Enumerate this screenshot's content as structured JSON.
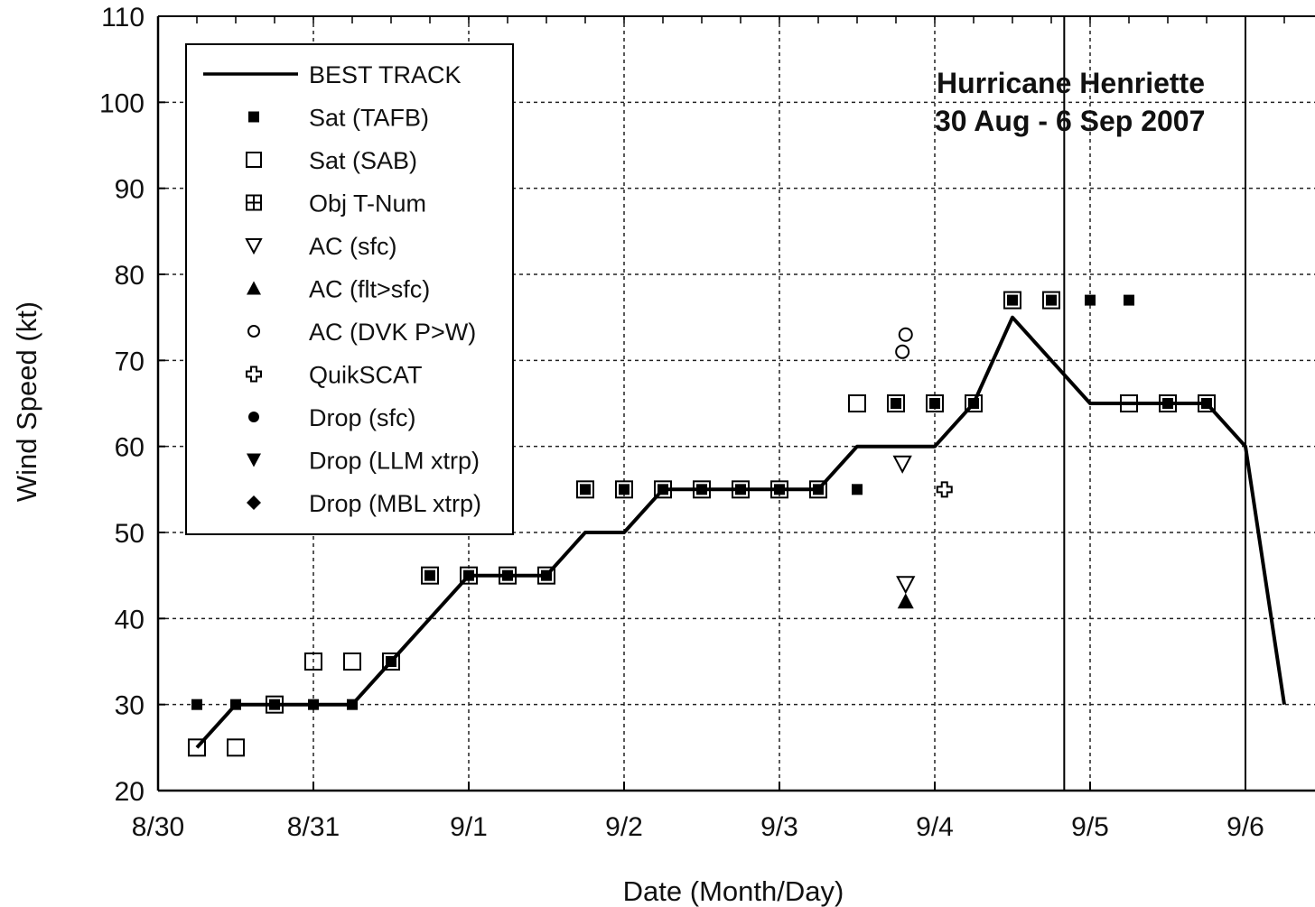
{
  "chart_data": {
    "type": "scatter",
    "title": "Hurricane Henriette",
    "subtitle": "30 Aug - 6 Sep 2007",
    "xlabel": "Date (Month/Day)",
    "ylabel": "Wind Speed (kt)",
    "xlim": [
      "2007-08-30",
      "2007-09-06T06:00"
    ],
    "ylim": [
      20,
      110
    ],
    "x_ticks": [
      "8/30",
      "8/31",
      "9/1",
      "9/2",
      "9/3",
      "9/4",
      "9/5",
      "9/6"
    ],
    "y_ticks": [
      20,
      30,
      40,
      50,
      60,
      70,
      80,
      90,
      100,
      110
    ],
    "grid": true,
    "legend_position": "top-left",
    "vertical_lines": [
      "2007-09-04T20:00",
      "2007-09-06T00:00"
    ],
    "series": [
      {
        "name": "BEST TRACK",
        "marker": "line",
        "points": [
          [
            "2007-08-30T06:00",
            25
          ],
          [
            "2007-08-30T12:00",
            30
          ],
          [
            "2007-08-30T18:00",
            30
          ],
          [
            "2007-08-31T00:00",
            30
          ],
          [
            "2007-08-31T06:00",
            30
          ],
          [
            "2007-08-31T12:00",
            35
          ],
          [
            "2007-08-31T18:00",
            40
          ],
          [
            "2007-09-01T00:00",
            45
          ],
          [
            "2007-09-01T06:00",
            45
          ],
          [
            "2007-09-01T12:00",
            45
          ],
          [
            "2007-09-01T18:00",
            50
          ],
          [
            "2007-09-02T00:00",
            50
          ],
          [
            "2007-09-02T06:00",
            55
          ],
          [
            "2007-09-02T12:00",
            55
          ],
          [
            "2007-09-02T18:00",
            55
          ],
          [
            "2007-09-03T00:00",
            55
          ],
          [
            "2007-09-03T06:00",
            55
          ],
          [
            "2007-09-03T12:00",
            60
          ],
          [
            "2007-09-03T18:00",
            60
          ],
          [
            "2007-09-04T00:00",
            60
          ],
          [
            "2007-09-04T06:00",
            65
          ],
          [
            "2007-09-04T12:00",
            75
          ],
          [
            "2007-09-04T18:00",
            70
          ],
          [
            "2007-09-05T00:00",
            65
          ],
          [
            "2007-09-05T06:00",
            65
          ],
          [
            "2007-09-05T12:00",
            65
          ],
          [
            "2007-09-05T18:00",
            65
          ],
          [
            "2007-09-06T00:00",
            60
          ],
          [
            "2007-09-06T06:00",
            30
          ]
        ]
      },
      {
        "name": "Sat (TAFB)",
        "marker": "small-square-filled",
        "points": [
          [
            "2007-08-30T06:00",
            30
          ],
          [
            "2007-08-30T12:00",
            30
          ],
          [
            "2007-08-30T18:00",
            30
          ],
          [
            "2007-08-31T00:00",
            30
          ],
          [
            "2007-08-31T06:00",
            30
          ],
          [
            "2007-08-31T12:00",
            35
          ],
          [
            "2007-08-31T18:00",
            45
          ],
          [
            "2007-09-01T00:00",
            45
          ],
          [
            "2007-09-01T06:00",
            45
          ],
          [
            "2007-09-01T12:00",
            45
          ],
          [
            "2007-09-01T18:00",
            55
          ],
          [
            "2007-09-02T00:00",
            55
          ],
          [
            "2007-09-02T06:00",
            55
          ],
          [
            "2007-09-02T12:00",
            55
          ],
          [
            "2007-09-02T18:00",
            55
          ],
          [
            "2007-09-03T00:00",
            55
          ],
          [
            "2007-09-03T06:00",
            55
          ],
          [
            "2007-09-03T12:00",
            55
          ],
          [
            "2007-09-03T18:00",
            65
          ],
          [
            "2007-09-04T00:00",
            65
          ],
          [
            "2007-09-04T06:00",
            65
          ],
          [
            "2007-09-04T12:00",
            77
          ],
          [
            "2007-09-04T18:00",
            77
          ],
          [
            "2007-09-05T00:00",
            77
          ],
          [
            "2007-09-05T06:00",
            77
          ],
          [
            "2007-09-05T12:00",
            65
          ],
          [
            "2007-09-05T18:00",
            65
          ]
        ]
      },
      {
        "name": "Sat (SAB)",
        "marker": "open-square",
        "points": [
          [
            "2007-08-30T06:00",
            25
          ],
          [
            "2007-08-30T12:00",
            25
          ],
          [
            "2007-08-30T18:00",
            30
          ],
          [
            "2007-08-31T00:00",
            35
          ],
          [
            "2007-08-31T06:00",
            35
          ],
          [
            "2007-08-31T12:00",
            35
          ],
          [
            "2007-08-31T18:00",
            45
          ],
          [
            "2007-09-01T00:00",
            45
          ],
          [
            "2007-09-01T06:00",
            45
          ],
          [
            "2007-09-01T12:00",
            45
          ],
          [
            "2007-09-01T18:00",
            55
          ],
          [
            "2007-09-02T00:00",
            55
          ],
          [
            "2007-09-02T06:00",
            55
          ],
          [
            "2007-09-02T12:00",
            55
          ],
          [
            "2007-09-02T18:00",
            55
          ],
          [
            "2007-09-03T00:00",
            55
          ],
          [
            "2007-09-03T06:00",
            55
          ],
          [
            "2007-09-03T12:00",
            65
          ],
          [
            "2007-09-03T18:00",
            65
          ],
          [
            "2007-09-04T00:00",
            65
          ],
          [
            "2007-09-04T06:00",
            65
          ],
          [
            "2007-09-04T12:00",
            77
          ],
          [
            "2007-09-04T18:00",
            77
          ],
          [
            "2007-09-05T06:00",
            65
          ],
          [
            "2007-09-05T12:00",
            65
          ],
          [
            "2007-09-05T18:00",
            65
          ]
        ]
      },
      {
        "name": "Obj T-Num",
        "marker": "grid-square",
        "points": []
      },
      {
        "name": "AC (sfc)",
        "marker": "triangle-down-open",
        "points": [
          [
            "2007-09-03T19:00",
            58
          ],
          [
            "2007-09-03T19:30",
            44
          ]
        ]
      },
      {
        "name": "AC (flt>sfc)",
        "marker": "triangle-up-filled",
        "points": [
          [
            "2007-09-03T19:30",
            42
          ]
        ]
      },
      {
        "name": "AC (DVK P>W)",
        "marker": "circle-open",
        "points": [
          [
            "2007-09-03T19:00",
            71
          ],
          [
            "2007-09-03T19:30",
            73
          ]
        ]
      },
      {
        "name": "QuikSCAT",
        "marker": "cross-open",
        "points": [
          [
            "2007-09-04T01:30",
            55
          ]
        ]
      },
      {
        "name": "Drop (sfc)",
        "marker": "circle-filled",
        "points": []
      },
      {
        "name": "Drop (LLM xtrp)",
        "marker": "triangle-down-filled",
        "points": []
      },
      {
        "name": "Drop (MBL xtrp)",
        "marker": "diamond-filled",
        "points": []
      }
    ]
  }
}
